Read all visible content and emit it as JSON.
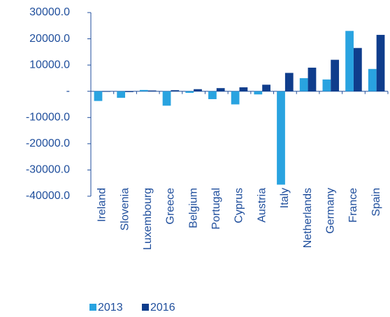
{
  "chart_data": {
    "type": "bar",
    "categories": [
      "Ireland",
      "Slovenia",
      "Luxembourg",
      "Greece",
      "Belgium",
      "Portugal",
      "Cyprus",
      "Austria",
      "Italy",
      "Netherlands",
      "Germany",
      "France",
      "Spain"
    ],
    "series": [
      {
        "name": "2013",
        "color": "#29a3e0",
        "values": [
          -3700,
          -2500,
          500,
          -5500,
          -600,
          -3000,
          -5000,
          -1200,
          -35600,
          5000,
          4500,
          23000,
          8500
        ]
      },
      {
        "name": "2016",
        "color": "#0f3d8c",
        "values": [
          -200,
          -300,
          300,
          400,
          800,
          1200,
          1500,
          2500,
          7000,
          9000,
          12000,
          16500,
          21500
        ]
      }
    ],
    "ylim": [
      -40000,
      30000
    ],
    "yticks": [
      {
        "value": -40000,
        "label": "-40000.0"
      },
      {
        "value": -30000,
        "label": "-30000.0"
      },
      {
        "value": -20000,
        "label": "-20000.0"
      },
      {
        "value": -10000,
        "label": "-10000.0"
      },
      {
        "value": 0,
        "label": "-"
      },
      {
        "value": 10000,
        "label": "10000.0"
      },
      {
        "value": 20000,
        "label": "20000.0"
      },
      {
        "value": 30000,
        "label": "30000.0"
      }
    ],
    "grid": false
  }
}
